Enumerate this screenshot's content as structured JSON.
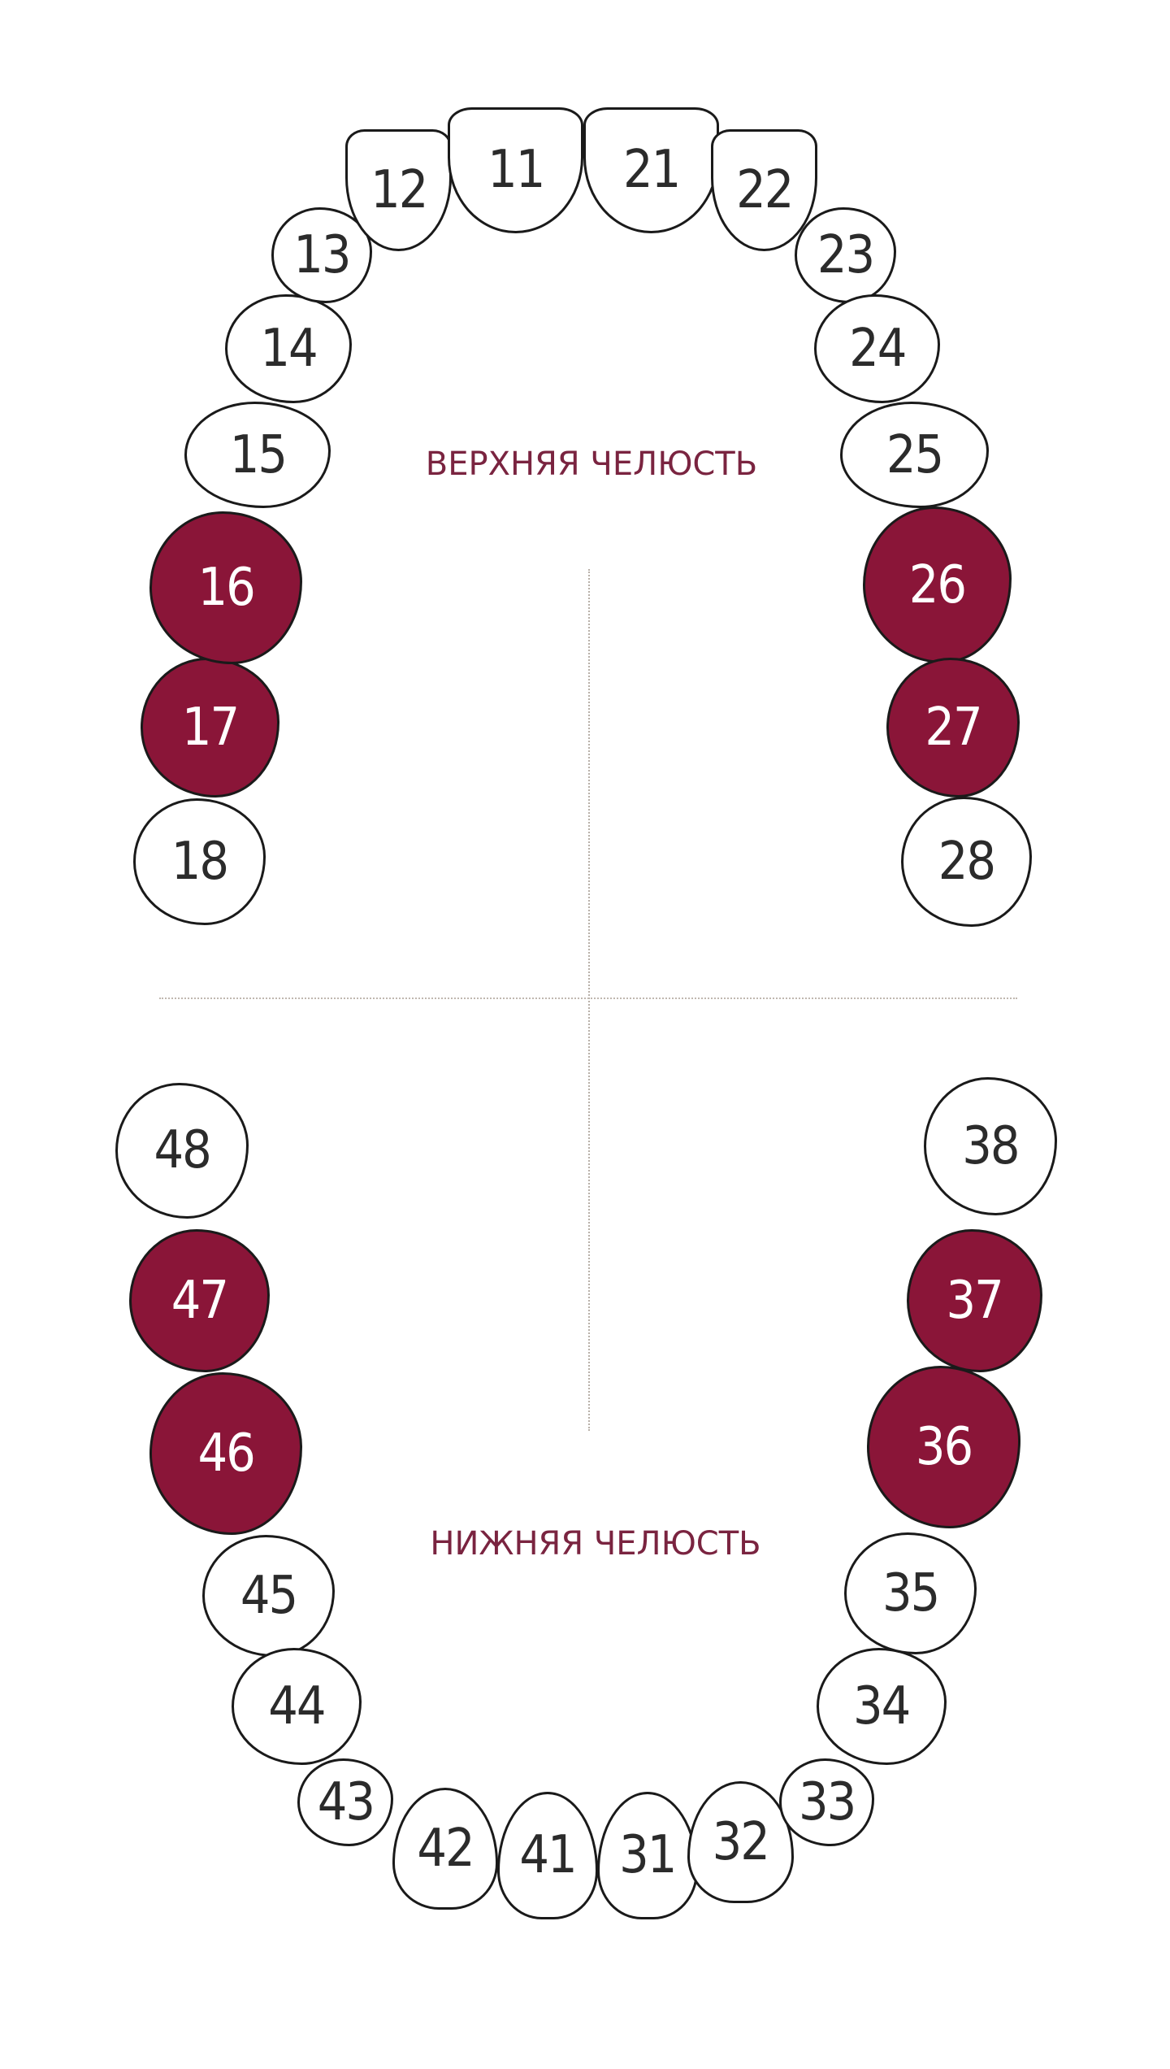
{
  "colors": {
    "marked_fill": "#8a1538",
    "label_text": "#7a2440",
    "outline": "#1a1a1a"
  },
  "upper_jaw": {
    "label": "ВЕРХНЯЯ ЧЕЛЮСТЬ",
    "teeth": [
      {
        "number": "18",
        "marked": false
      },
      {
        "number": "17",
        "marked": true
      },
      {
        "number": "16",
        "marked": true
      },
      {
        "number": "15",
        "marked": false
      },
      {
        "number": "14",
        "marked": false
      },
      {
        "number": "13",
        "marked": false
      },
      {
        "number": "12",
        "marked": false
      },
      {
        "number": "11",
        "marked": false
      },
      {
        "number": "21",
        "marked": false
      },
      {
        "number": "22",
        "marked": false
      },
      {
        "number": "23",
        "marked": false
      },
      {
        "number": "24",
        "marked": false
      },
      {
        "number": "25",
        "marked": false
      },
      {
        "number": "26",
        "marked": true
      },
      {
        "number": "27",
        "marked": true
      },
      {
        "number": "28",
        "marked": false
      }
    ]
  },
  "lower_jaw": {
    "label": "НИЖНЯЯ ЧЕЛЮСТЬ",
    "teeth": [
      {
        "number": "48",
        "marked": false
      },
      {
        "number": "47",
        "marked": true
      },
      {
        "number": "46",
        "marked": true
      },
      {
        "number": "45",
        "marked": false
      },
      {
        "number": "44",
        "marked": false
      },
      {
        "number": "43",
        "marked": false
      },
      {
        "number": "42",
        "marked": false
      },
      {
        "number": "41",
        "marked": false
      },
      {
        "number": "31",
        "marked": false
      },
      {
        "number": "32",
        "marked": false
      },
      {
        "number": "33",
        "marked": false
      },
      {
        "number": "34",
        "marked": false
      },
      {
        "number": "35",
        "marked": false
      },
      {
        "number": "36",
        "marked": true
      },
      {
        "number": "37",
        "marked": true
      },
      {
        "number": "38",
        "marked": false
      }
    ]
  }
}
